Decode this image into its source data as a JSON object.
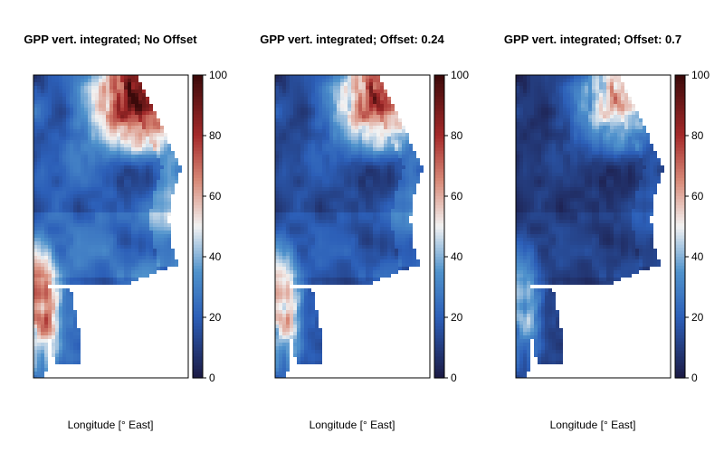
{
  "chart_data": [
    {
      "type": "heatmap",
      "title": "GPP vert. integrated; No Offset",
      "xlabel": "Longitude [° East]",
      "ylabel": "",
      "colorbar": {
        "ticks": [
          0,
          20,
          40,
          60,
          80,
          100
        ],
        "range": [
          0,
          100
        ]
      },
      "offset": 0,
      "field_summary": {
        "ocean_typical": 22,
        "north_coast_high": 92,
        "southwest_coast_high": 85
      }
    },
    {
      "type": "heatmap",
      "title": "GPP vert. integrated; Offset: 0.24",
      "xlabel": "Longitude [° East]",
      "ylabel": "",
      "colorbar": {
        "ticks": [
          0,
          20,
          40,
          60,
          80,
          100
        ],
        "range": [
          0,
          100
        ]
      },
      "offset": 0.24,
      "field_summary": {
        "ocean_typical": 16,
        "north_coast_high": 80,
        "southwest_coast_high": 72
      }
    },
    {
      "type": "heatmap",
      "title": "GPP vert. integrated; Offset: 0.7",
      "xlabel": "Longitude [° East]",
      "ylabel": "",
      "colorbar": {
        "ticks": [
          0,
          20,
          40,
          60,
          80,
          100
        ],
        "range": [
          0,
          100
        ]
      },
      "offset": 0.7,
      "field_summary": {
        "ocean_typical": 10,
        "north_coast_high": 62,
        "southwest_coast_high": 50
      }
    }
  ],
  "colors": {
    "c0": "#1c1a44",
    "c20": "#2c5fb8",
    "c35": "#4f92cc",
    "c50": "#f2f2f2",
    "c65": "#d88a78",
    "c80": "#a52a2a",
    "c100": "#3b0a0a"
  }
}
